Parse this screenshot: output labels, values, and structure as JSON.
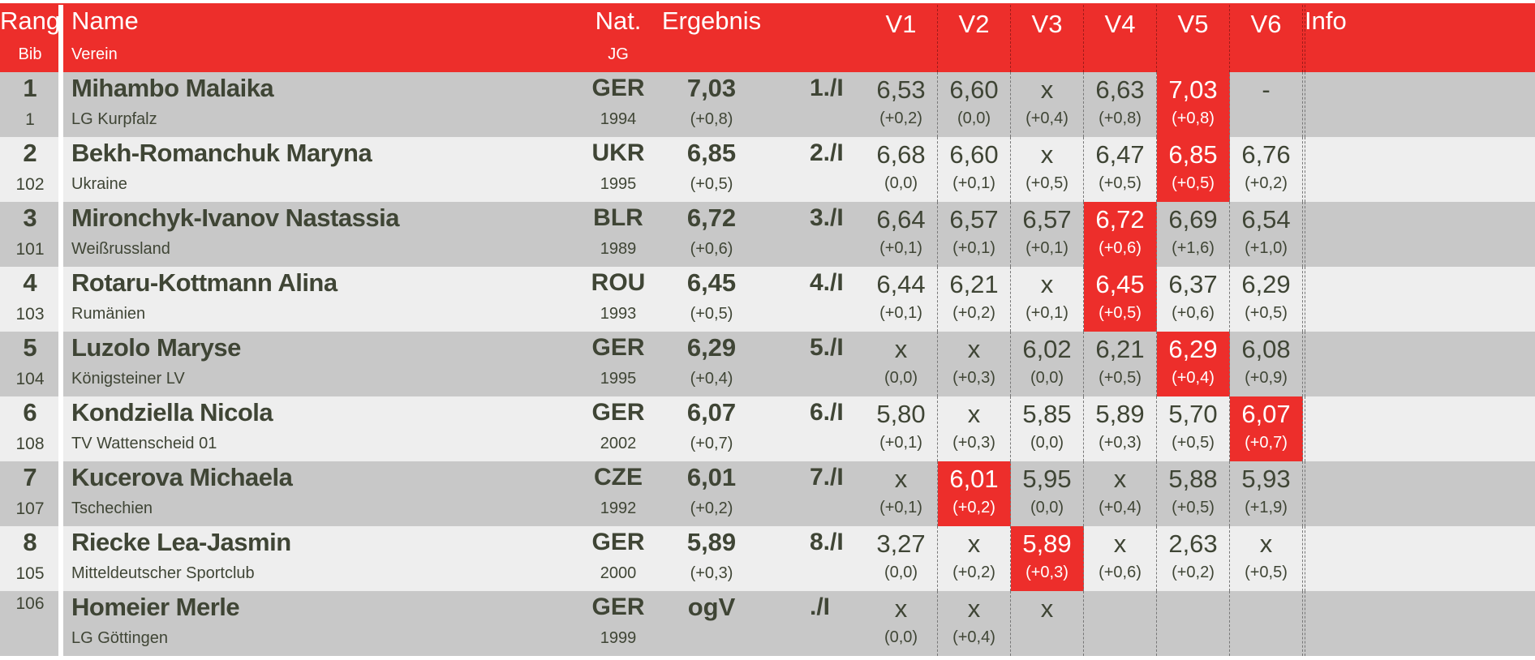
{
  "header": {
    "rang": "Rang",
    "bib": "Bib",
    "name": "Name",
    "verein": "Verein",
    "nat": "Nat.",
    "jg": "JG",
    "ergebnis": "Ergebnis",
    "attempts": [
      "V1",
      "V2",
      "V3",
      "V4",
      "V5",
      "V6"
    ],
    "info": "Info"
  },
  "colors": {
    "accent": "#ed2e2b",
    "row_odd": "#c8c8c8",
    "row_even": "#eeeeee",
    "text": "#3f4535"
  },
  "rows": [
    {
      "rank": "1",
      "bib": "1",
      "name": "Mihambo Malaika",
      "club": "LG Kurpfalz",
      "nat": "GER",
      "jg": "1994",
      "result": "7,03",
      "wind": "(+0,8)",
      "place": "1./I",
      "attempts": [
        {
          "v": "6,53",
          "w": "(+0,2)"
        },
        {
          "v": "6,60",
          "w": "(0,0)"
        },
        {
          "v": "x",
          "w": "(+0,4)"
        },
        {
          "v": "6,63",
          "w": "(+0,8)"
        },
        {
          "v": "7,03",
          "w": "(+0,8)",
          "best": true
        },
        {
          "v": "-",
          "w": ""
        }
      ]
    },
    {
      "rank": "2",
      "bib": "102",
      "name": "Bekh-Romanchuk Maryna",
      "club": "Ukraine",
      "nat": "UKR",
      "jg": "1995",
      "result": "6,85",
      "wind": "(+0,5)",
      "place": "2./I",
      "attempts": [
        {
          "v": "6,68",
          "w": "(0,0)"
        },
        {
          "v": "6,60",
          "w": "(+0,1)"
        },
        {
          "v": "x",
          "w": "(+0,5)"
        },
        {
          "v": "6,47",
          "w": "(+0,5)"
        },
        {
          "v": "6,85",
          "w": "(+0,5)",
          "best": true
        },
        {
          "v": "6,76",
          "w": "(+0,2)"
        }
      ]
    },
    {
      "rank": "3",
      "bib": "101",
      "name": "Mironchyk-Ivanov Nastassia",
      "club": "Weißrussland",
      "nat": "BLR",
      "jg": "1989",
      "result": "6,72",
      "wind": "(+0,6)",
      "place": "3./I",
      "attempts": [
        {
          "v": "6,64",
          "w": "(+0,1)"
        },
        {
          "v": "6,57",
          "w": "(+0,1)"
        },
        {
          "v": "6,57",
          "w": "(+0,1)"
        },
        {
          "v": "6,72",
          "w": "(+0,6)",
          "best": true
        },
        {
          "v": "6,69",
          "w": "(+1,6)"
        },
        {
          "v": "6,54",
          "w": "(+1,0)"
        }
      ]
    },
    {
      "rank": "4",
      "bib": "103",
      "name": "Rotaru-Kottmann Alina",
      "club": "Rumänien",
      "nat": "ROU",
      "jg": "1993",
      "result": "6,45",
      "wind": "(+0,5)",
      "place": "4./I",
      "attempts": [
        {
          "v": "6,44",
          "w": "(+0,1)"
        },
        {
          "v": "6,21",
          "w": "(+0,2)"
        },
        {
          "v": "x",
          "w": "(+0,1)"
        },
        {
          "v": "6,45",
          "w": "(+0,5)",
          "best": true
        },
        {
          "v": "6,37",
          "w": "(+0,6)"
        },
        {
          "v": "6,29",
          "w": "(+0,5)"
        }
      ]
    },
    {
      "rank": "5",
      "bib": "104",
      "name": "Luzolo Maryse",
      "club": "Königsteiner LV",
      "nat": "GER",
      "jg": "1995",
      "result": "6,29",
      "wind": "(+0,4)",
      "place": "5./I",
      "attempts": [
        {
          "v": "x",
          "w": "(0,0)"
        },
        {
          "v": "x",
          "w": "(+0,3)"
        },
        {
          "v": "6,02",
          "w": "(0,0)"
        },
        {
          "v": "6,21",
          "w": "(+0,5)"
        },
        {
          "v": "6,29",
          "w": "(+0,4)",
          "best": true
        },
        {
          "v": "6,08",
          "w": "(+0,9)"
        }
      ]
    },
    {
      "rank": "6",
      "bib": "108",
      "name": "Kondziella Nicola",
      "club": "TV Wattenscheid 01",
      "nat": "GER",
      "jg": "2002",
      "result": "6,07",
      "wind": "(+0,7)",
      "place": "6./I",
      "attempts": [
        {
          "v": "5,80",
          "w": "(+0,1)"
        },
        {
          "v": "x",
          "w": "(+0,3)"
        },
        {
          "v": "5,85",
          "w": "(0,0)"
        },
        {
          "v": "5,89",
          "w": "(+0,3)"
        },
        {
          "v": "5,70",
          "w": "(+0,5)"
        },
        {
          "v": "6,07",
          "w": "(+0,7)",
          "best": true
        }
      ]
    },
    {
      "rank": "7",
      "bib": "107",
      "name": "Kucerova Michaela",
      "club": "Tschechien",
      "nat": "CZE",
      "jg": "1992",
      "result": "6,01",
      "wind": "(+0,2)",
      "place": "7./I",
      "attempts": [
        {
          "v": "x",
          "w": "(+0,1)"
        },
        {
          "v": "6,01",
          "w": "(+0,2)",
          "best": true
        },
        {
          "v": "5,95",
          "w": "(0,0)"
        },
        {
          "v": "x",
          "w": "(+0,4)"
        },
        {
          "v": "5,88",
          "w": "(+0,5)"
        },
        {
          "v": "5,93",
          "w": "(+1,9)"
        }
      ]
    },
    {
      "rank": "8",
      "bib": "105",
      "name": "Riecke Lea-Jasmin",
      "club": "Mitteldeutscher Sportclub",
      "nat": "GER",
      "jg": "2000",
      "result": "5,89",
      "wind": "(+0,3)",
      "place": "8./I",
      "attempts": [
        {
          "v": "3,27",
          "w": "(0,0)"
        },
        {
          "v": "x",
          "w": "(+0,2)"
        },
        {
          "v": "5,89",
          "w": "(+0,3)",
          "best": true
        },
        {
          "v": "x",
          "w": "(+0,6)"
        },
        {
          "v": "2,63",
          "w": "(+0,2)"
        },
        {
          "v": "x",
          "w": "(+0,5)"
        }
      ]
    },
    {
      "rank": "",
      "bib": "106",
      "name": "Homeier Merle",
      "club": "LG Göttingen",
      "nat": "GER",
      "jg": "1999",
      "result": "ogV",
      "wind": "",
      "place": "./I",
      "attempts": [
        {
          "v": "x",
          "w": "(0,0)"
        },
        {
          "v": "x",
          "w": "(+0,4)"
        },
        {
          "v": "x",
          "w": ""
        },
        {
          "v": "",
          "w": ""
        },
        {
          "v": "",
          "w": ""
        },
        {
          "v": "",
          "w": ""
        }
      ]
    }
  ]
}
